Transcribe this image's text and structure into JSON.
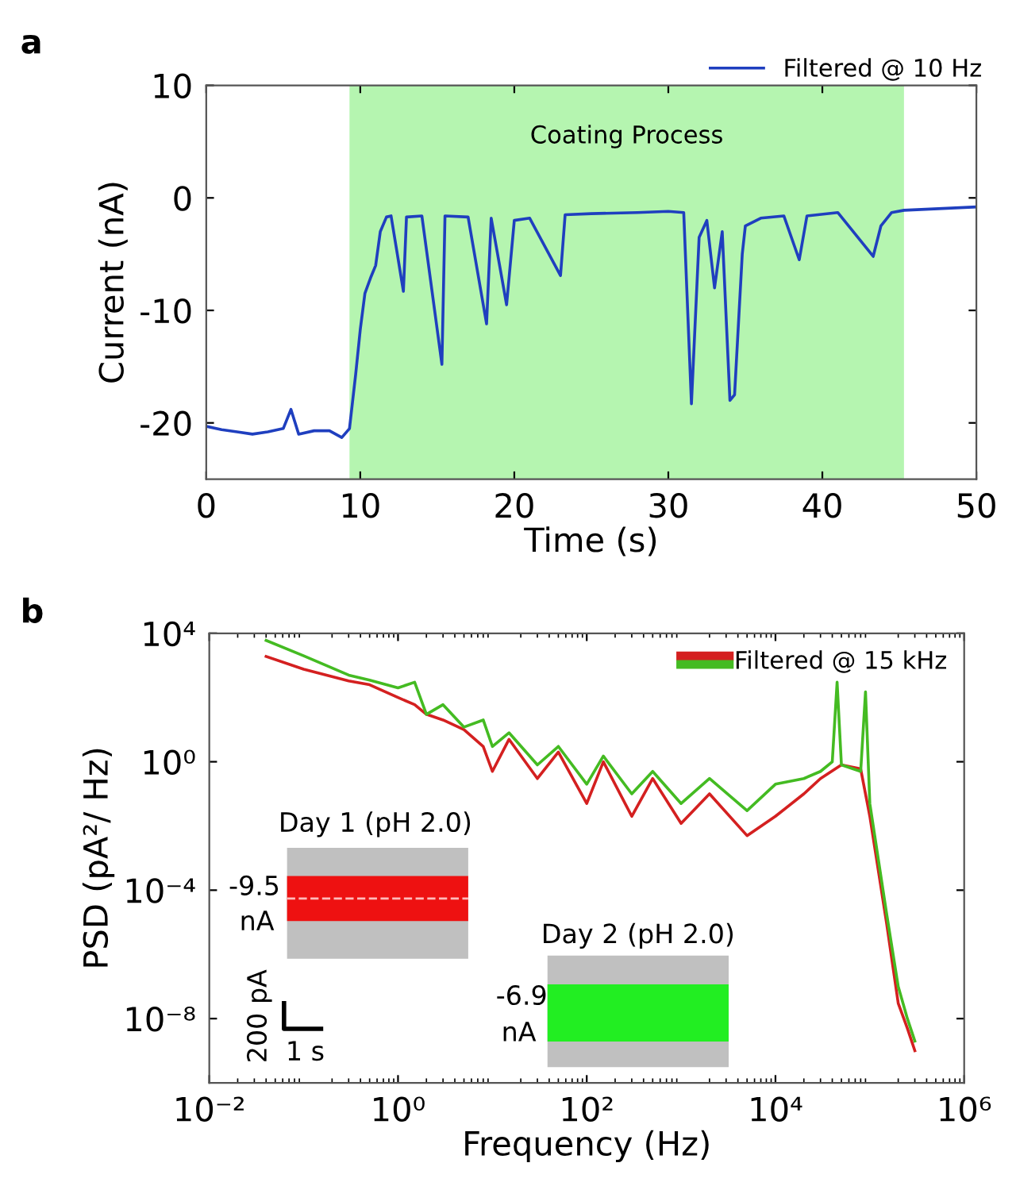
{
  "chart_data": [
    {
      "type": "line",
      "title": "a",
      "xlabel": "Time (s)",
      "ylabel": "Current (nA)",
      "x": [
        0,
        1,
        2,
        3,
        4,
        5,
        5.5,
        6,
        7,
        8,
        8.8,
        9.3,
        9.7,
        10,
        10.3,
        10.7,
        11,
        11.3,
        11.7,
        12,
        12.8,
        13,
        14,
        15.3,
        15.5,
        17,
        18.2,
        18.5,
        19.5,
        20,
        21,
        23,
        23.3,
        25,
        28,
        30,
        31,
        31.5,
        32,
        32.5,
        33,
        33.5,
        34,
        34.3,
        34.8,
        35,
        36,
        37.5,
        38.5,
        39,
        41,
        43.3,
        43.8,
        44.5,
        45.3,
        50
      ],
      "series": [
        {
          "name": "Filtered @ 10 Hz",
          "color": "#1f3fbf",
          "values": [
            -20.3,
            -20.6,
            -20.8,
            -21.0,
            -20.8,
            -20.5,
            -18.8,
            -21.0,
            -20.7,
            -20.7,
            -21.3,
            -20.5,
            -15.7,
            -11.7,
            -8.5,
            -7.0,
            -6,
            -3,
            -1.7,
            -1.6,
            -8.3,
            -1.7,
            -1.6,
            -14.8,
            -1.6,
            -1.7,
            -11.2,
            -1.8,
            -9.5,
            -2,
            -1.8,
            -6.9,
            -1.5,
            -1.4,
            -1.3,
            -1.2,
            -1.3,
            -18.3,
            -3.5,
            -2.0,
            -8,
            -3,
            -18.0,
            -17.5,
            -5,
            -2.5,
            -1.8,
            -1.6,
            -5.5,
            -1.6,
            -1.3,
            -5.2,
            -2.5,
            -1.3,
            -1.1,
            -0.8
          ]
        }
      ],
      "xlim": [
        0,
        50
      ],
      "ylim": [
        -25,
        10
      ],
      "xticks": [
        0,
        10,
        20,
        30,
        40,
        50
      ],
      "yticks": [
        -20,
        -10,
        0,
        10
      ],
      "bands": [
        {
          "axis": "x",
          "from": 9.3,
          "to": 45.3,
          "label": "Coating Process",
          "color": "#b5f5b0"
        }
      ],
      "legend": "top right"
    },
    {
      "type": "line",
      "title": "b",
      "xlabel": "Frequency (Hz)",
      "ylabel": "PSD (pA²/ Hz)",
      "log": "xy",
      "series": [
        {
          "name": "Filtered @ 15 kHz",
          "color": "#d42020",
          "x": [
            0.04,
            0.1,
            0.3,
            0.5,
            1,
            1.5,
            2,
            3,
            5,
            8,
            10,
            15,
            30,
            50,
            100,
            150,
            300,
            500,
            1000,
            2000,
            5000,
            10000,
            20000,
            30000,
            50000,
            80000,
            100000,
            150000,
            200000,
            250000,
            300000
          ],
          "values": [
            1900,
            760,
            330,
            250,
            100,
            60,
            30,
            20,
            10,
            3,
            0.5,
            5,
            0.3,
            2,
            0.05,
            1,
            0.02,
            0.3,
            0.012,
            0.1,
            0.005,
            0.02,
            0.1,
            0.3,
            0.8,
            0.6,
            0.02,
            1e-05,
            3e-08,
            5e-09,
            1e-09
          ]
        },
        {
          "color": "#44bb22",
          "x": [
            0.04,
            0.1,
            0.3,
            0.5,
            1,
            1.5,
            2,
            3,
            5,
            8,
            10,
            15,
            30,
            50,
            100,
            150,
            300,
            500,
            1000,
            2000,
            5000,
            10000,
            20000,
            30000,
            40000,
            45000,
            50000,
            80000,
            90000,
            100000,
            150000,
            200000,
            250000,
            300000
          ],
          "values": [
            6000,
            2000,
            500,
            350,
            200,
            300,
            30,
            60,
            12,
            20,
            3,
            8,
            0.8,
            3,
            0.2,
            1.5,
            0.1,
            0.5,
            0.05,
            0.3,
            0.03,
            0.2,
            0.3,
            0.5,
            1,
            300,
            0.8,
            0.5,
            150,
            0.05,
            2e-05,
            1e-07,
            1e-08,
            2e-09
          ]
        }
      ],
      "xlim": [
        0.01,
        1000000
      ],
      "ylim": [
        1e-10,
        10000
      ],
      "xticks": [
        {
          "value": 0.01,
          "label": "10⁻²"
        },
        {
          "value": 1,
          "label": "10⁰"
        },
        {
          "value": 100,
          "label": "10²"
        },
        {
          "value": 10000,
          "label": "10⁴"
        },
        {
          "value": 1000000,
          "label": "10⁶"
        }
      ],
      "yticks": [
        {
          "value": 1e-08,
          "label": "10⁻⁸"
        },
        {
          "value": 0.0001,
          "label": "10⁻⁴"
        },
        {
          "value": 1,
          "label": "10⁰"
        },
        {
          "value": 10000,
          "label": "10⁴"
        }
      ],
      "legend": "top right",
      "annotations": [
        "Day 1 (pH 2.0)",
        "-9.5",
        "nA",
        "Day 2 (pH 2.0)",
        "-6.9",
        "nA",
        "200 pA",
        "1 s"
      ]
    }
  ]
}
